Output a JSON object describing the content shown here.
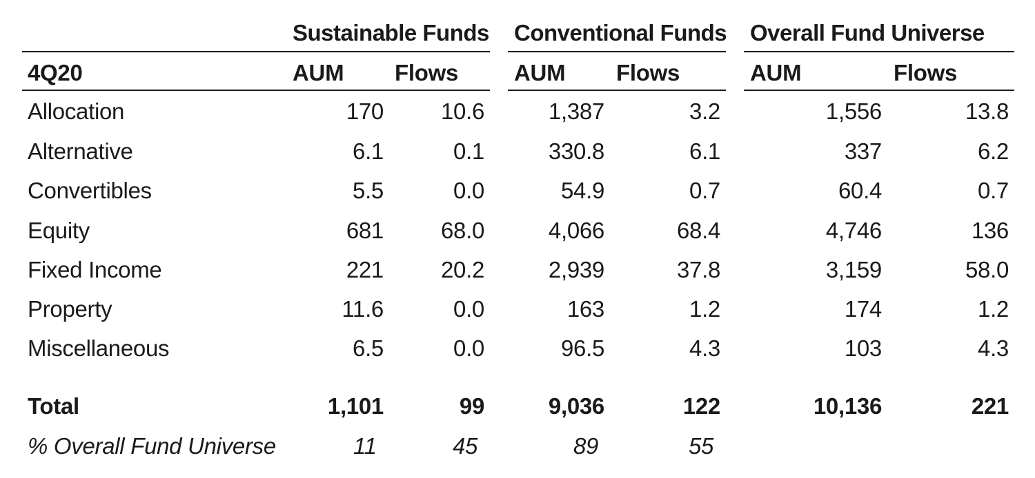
{
  "table": {
    "group_headers": {
      "sustainable": "Sustainable Funds",
      "conventional": "Conventional Funds",
      "overall": "Overall Fund Universe"
    },
    "columns": {
      "period": "4Q20",
      "aum": "AUM",
      "flows": "Flows"
    },
    "rows": [
      {
        "label": "Allocation",
        "s_aum": "170",
        "s_flows": "10.6",
        "c_aum": "1,387",
        "c_flows": "3.2",
        "o_aum": "1,556",
        "o_flows": "13.8"
      },
      {
        "label": "Alternative",
        "s_aum": "6.1",
        "s_flows": "0.1",
        "c_aum": "330.8",
        "c_flows": "6.1",
        "o_aum": "337",
        "o_flows": "6.2"
      },
      {
        "label": "Convertibles",
        "s_aum": "5.5",
        "s_flows": "0.0",
        "c_aum": "54.9",
        "c_flows": "0.7",
        "o_aum": "60.4",
        "o_flows": "0.7"
      },
      {
        "label": "Equity",
        "s_aum": "681",
        "s_flows": "68.0",
        "c_aum": "4,066",
        "c_flows": "68.4",
        "o_aum": "4,746",
        "o_flows": "136"
      },
      {
        "label": "Fixed Income",
        "s_aum": "221",
        "s_flows": "20.2",
        "c_aum": "2,939",
        "c_flows": "37.8",
        "o_aum": "3,159",
        "o_flows": "58.0"
      },
      {
        "label": "Property",
        "s_aum": "11.6",
        "s_flows": "0.0",
        "c_aum": "163",
        "c_flows": "1.2",
        "o_aum": "174",
        "o_flows": "1.2"
      },
      {
        "label": "Miscellaneous",
        "s_aum": "6.5",
        "s_flows": "0.0",
        "c_aum": "96.5",
        "c_flows": "4.3",
        "o_aum": "103",
        "o_flows": "4.3"
      }
    ],
    "total": {
      "label": "Total",
      "s_aum": "1,101",
      "s_flows": "99",
      "c_aum": "9,036",
      "c_flows": "122",
      "o_aum": "10,136",
      "o_flows": "221"
    },
    "pct": {
      "label": "% Overall Fund Universe",
      "s_aum": "11",
      "s_flows": "45",
      "c_aum": "89",
      "c_flows": "55"
    }
  },
  "chart_data": {
    "type": "table",
    "title": "",
    "header_groups": [
      "Sustainable Funds",
      "Conventional Funds",
      "Overall Fund Universe"
    ],
    "columns": [
      "4Q20",
      "AUM",
      "Flows",
      "AUM",
      "Flows",
      "AUM",
      "Flows"
    ],
    "rows": [
      [
        "Allocation",
        "170",
        "10.6",
        "1,387",
        "3.2",
        "1,556",
        "13.8"
      ],
      [
        "Alternative",
        "6.1",
        "0.1",
        "330.8",
        "6.1",
        "337",
        "6.2"
      ],
      [
        "Convertibles",
        "5.5",
        "0.0",
        "54.9",
        "0.7",
        "60.4",
        "0.7"
      ],
      [
        "Equity",
        "681",
        "68.0",
        "4,066",
        "68.4",
        "4,746",
        "136"
      ],
      [
        "Fixed Income",
        "221",
        "20.2",
        "2,939",
        "37.8",
        "3,159",
        "58.0"
      ],
      [
        "Property",
        "11.6",
        "0.0",
        "163",
        "1.2",
        "174",
        "1.2"
      ],
      [
        "Miscellaneous",
        "6.5",
        "0.0",
        "96.5",
        "4.3",
        "103",
        "4.3"
      ],
      [
        "Total",
        "1,101",
        "99",
        "9,036",
        "122",
        "10,136",
        "221"
      ],
      [
        "% Overall Fund Universe",
        "11",
        "45",
        "89",
        "55",
        "",
        ""
      ]
    ]
  }
}
